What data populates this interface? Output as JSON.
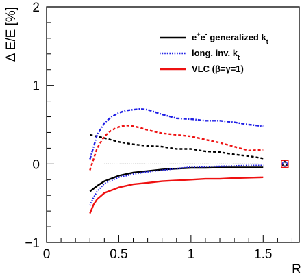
{
  "chart_data": {
    "type": "line",
    "title": "",
    "xlabel": "R",
    "ylabel": "Δ E/E [%]",
    "xlim": [
      0,
      1.75
    ],
    "ylim": [
      -1,
      2
    ],
    "xticks": [
      0,
      0.5,
      1,
      1.5
    ],
    "yticks": [
      -1,
      0,
      1,
      2
    ],
    "grid": false,
    "legend_position": "top-right",
    "legend": [
      {
        "series_id": "ee",
        "parts": [
          "e",
          "+",
          "e",
          "-",
          " generalized k",
          "t"
        ],
        "color": "#000000",
        "dash": "solid"
      },
      {
        "series_id": "inv",
        "parts": [
          "long. inv. k",
          "t"
        ],
        "color": "#1f1fe6",
        "dash": "dotted"
      },
      {
        "series_id": "vlc",
        "parts": [
          "VLC (β=γ=1)"
        ],
        "color": "#ee1111",
        "dash": "solid"
      }
    ],
    "series": [
      {
        "id": "ee",
        "style": "solid",
        "color": "#000000",
        "x": [
          0.3,
          0.35,
          0.4,
          0.5,
          0.6,
          0.7,
          0.8,
          0.9,
          1.0,
          1.1,
          1.2,
          1.3,
          1.4,
          1.5
        ],
        "y": [
          -0.35,
          -0.28,
          -0.22,
          -0.15,
          -0.11,
          -0.09,
          -0.07,
          -0.06,
          -0.05,
          -0.05,
          -0.045,
          -0.045,
          -0.045,
          -0.045
        ]
      },
      {
        "id": "inv",
        "style": "dotted",
        "color": "#1f1fe6",
        "x": [
          0.3,
          0.325,
          0.35,
          0.4,
          0.5,
          0.6,
          0.7,
          0.8,
          0.9,
          1.0,
          1.1,
          1.2,
          1.3,
          1.4,
          1.5
        ],
        "y": [
          -0.53,
          -0.43,
          -0.35,
          -0.25,
          -0.17,
          -0.13,
          -0.1,
          -0.08,
          -0.06,
          -0.04,
          -0.035,
          -0.03,
          -0.025,
          -0.02,
          -0.02
        ]
      },
      {
        "id": "vlc",
        "style": "solid",
        "color": "#ee1111",
        "x": [
          0.3,
          0.325,
          0.35,
          0.4,
          0.5,
          0.6,
          0.7,
          0.8,
          0.9,
          1.0,
          1.1,
          1.2,
          1.3,
          1.4,
          1.5
        ],
        "y": [
          -0.63,
          -0.52,
          -0.45,
          -0.37,
          -0.3,
          -0.26,
          -0.24,
          -0.22,
          -0.21,
          -0.2,
          -0.19,
          -0.19,
          -0.18,
          -0.175,
          -0.17
        ]
      },
      {
        "id": "ee-upper",
        "style": "dashed",
        "color": "#000000",
        "x": [
          0.3,
          0.4,
          0.5,
          0.6,
          0.7,
          0.8,
          0.9,
          1.0,
          1.1,
          1.2,
          1.3,
          1.4,
          1.5
        ],
        "y": [
          0.37,
          0.33,
          0.28,
          0.25,
          0.23,
          0.22,
          0.19,
          0.19,
          0.16,
          0.15,
          0.12,
          0.1,
          0.07
        ]
      },
      {
        "id": "vlc-upper",
        "style": "dashed",
        "color": "#ee1111",
        "x": [
          0.3,
          0.35,
          0.4,
          0.45,
          0.5,
          0.55,
          0.6,
          0.65,
          0.7,
          0.8,
          0.9,
          1.0,
          1.1,
          1.2,
          1.3,
          1.4,
          1.5
        ],
        "y": [
          -0.08,
          0.2,
          0.35,
          0.43,
          0.47,
          0.49,
          0.48,
          0.46,
          0.43,
          0.39,
          0.37,
          0.35,
          0.31,
          0.27,
          0.22,
          0.17,
          0.18
        ]
      },
      {
        "id": "inv-upper",
        "style": "dashdot",
        "color": "#1f1fe6",
        "x": [
          0.3,
          0.35,
          0.4,
          0.45,
          0.5,
          0.55,
          0.6,
          0.65,
          0.7,
          0.8,
          0.9,
          1.0,
          1.1,
          1.2,
          1.3,
          1.4,
          1.5
        ],
        "y": [
          0.06,
          0.37,
          0.52,
          0.6,
          0.65,
          0.68,
          0.69,
          0.7,
          0.69,
          0.63,
          0.58,
          0.57,
          0.55,
          0.55,
          0.53,
          0.5,
          0.48
        ]
      },
      {
        "id": "reference-zero",
        "style": "thin-dotted",
        "color": "#000000",
        "x": [
          0.4,
          1.5
        ],
        "y": [
          0,
          0
        ]
      }
    ],
    "markers": [
      {
        "id": "vlc-square",
        "shape": "square",
        "color": "#ee1111",
        "x": 1.65,
        "y": 0
      },
      {
        "id": "inv-circle",
        "shape": "circle",
        "color": "#1f1fe6",
        "x": 1.65,
        "y": 0
      },
      {
        "id": "ee-triangle",
        "shape": "triangle",
        "color": "#000000",
        "x": 1.65,
        "y": 0
      }
    ]
  }
}
